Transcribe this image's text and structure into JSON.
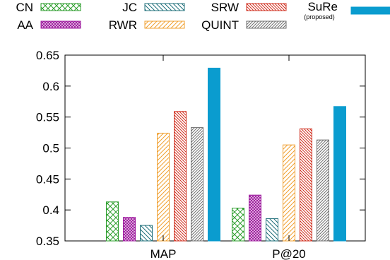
{
  "chart_data": {
    "type": "bar",
    "categories": [
      "MAP",
      "P@20"
    ],
    "ylim": [
      0.35,
      0.65
    ],
    "yticks": [
      "0.35",
      "0.4",
      "0.45",
      "0.5",
      "0.55",
      "0.6",
      "0.65"
    ],
    "ytick_values": [
      0.35,
      0.4,
      0.45,
      0.5,
      0.55,
      0.6,
      0.65
    ],
    "grid": false,
    "legend_position": "top",
    "series": [
      {
        "name": "CN",
        "values": [
          0.413,
          0.403
        ],
        "color": "#2e9e2e",
        "pattern": "crosshatch"
      },
      {
        "name": "AA",
        "values": [
          0.388,
          0.424
        ],
        "color": "#a020a0",
        "pattern": "dense-crosshatch"
      },
      {
        "name": "JC",
        "values": [
          0.375,
          0.386
        ],
        "color": "#1f6f7a",
        "pattern": "backslash"
      },
      {
        "name": "RWR",
        "values": [
          0.524,
          0.505
        ],
        "color": "#f0a030",
        "pattern": "slash"
      },
      {
        "name": "SRW",
        "values": [
          0.559,
          0.531
        ],
        "color": "#d03020",
        "pattern": "backslash-dense"
      },
      {
        "name": "QUINT",
        "values": [
          0.533,
          0.513
        ],
        "color": "#707070",
        "pattern": "slash-dense"
      },
      {
        "name": "SuRe",
        "sub": "(proposed)",
        "values": [
          0.629,
          0.567
        ],
        "color": "#0a9ccf",
        "pattern": "solid"
      }
    ]
  }
}
